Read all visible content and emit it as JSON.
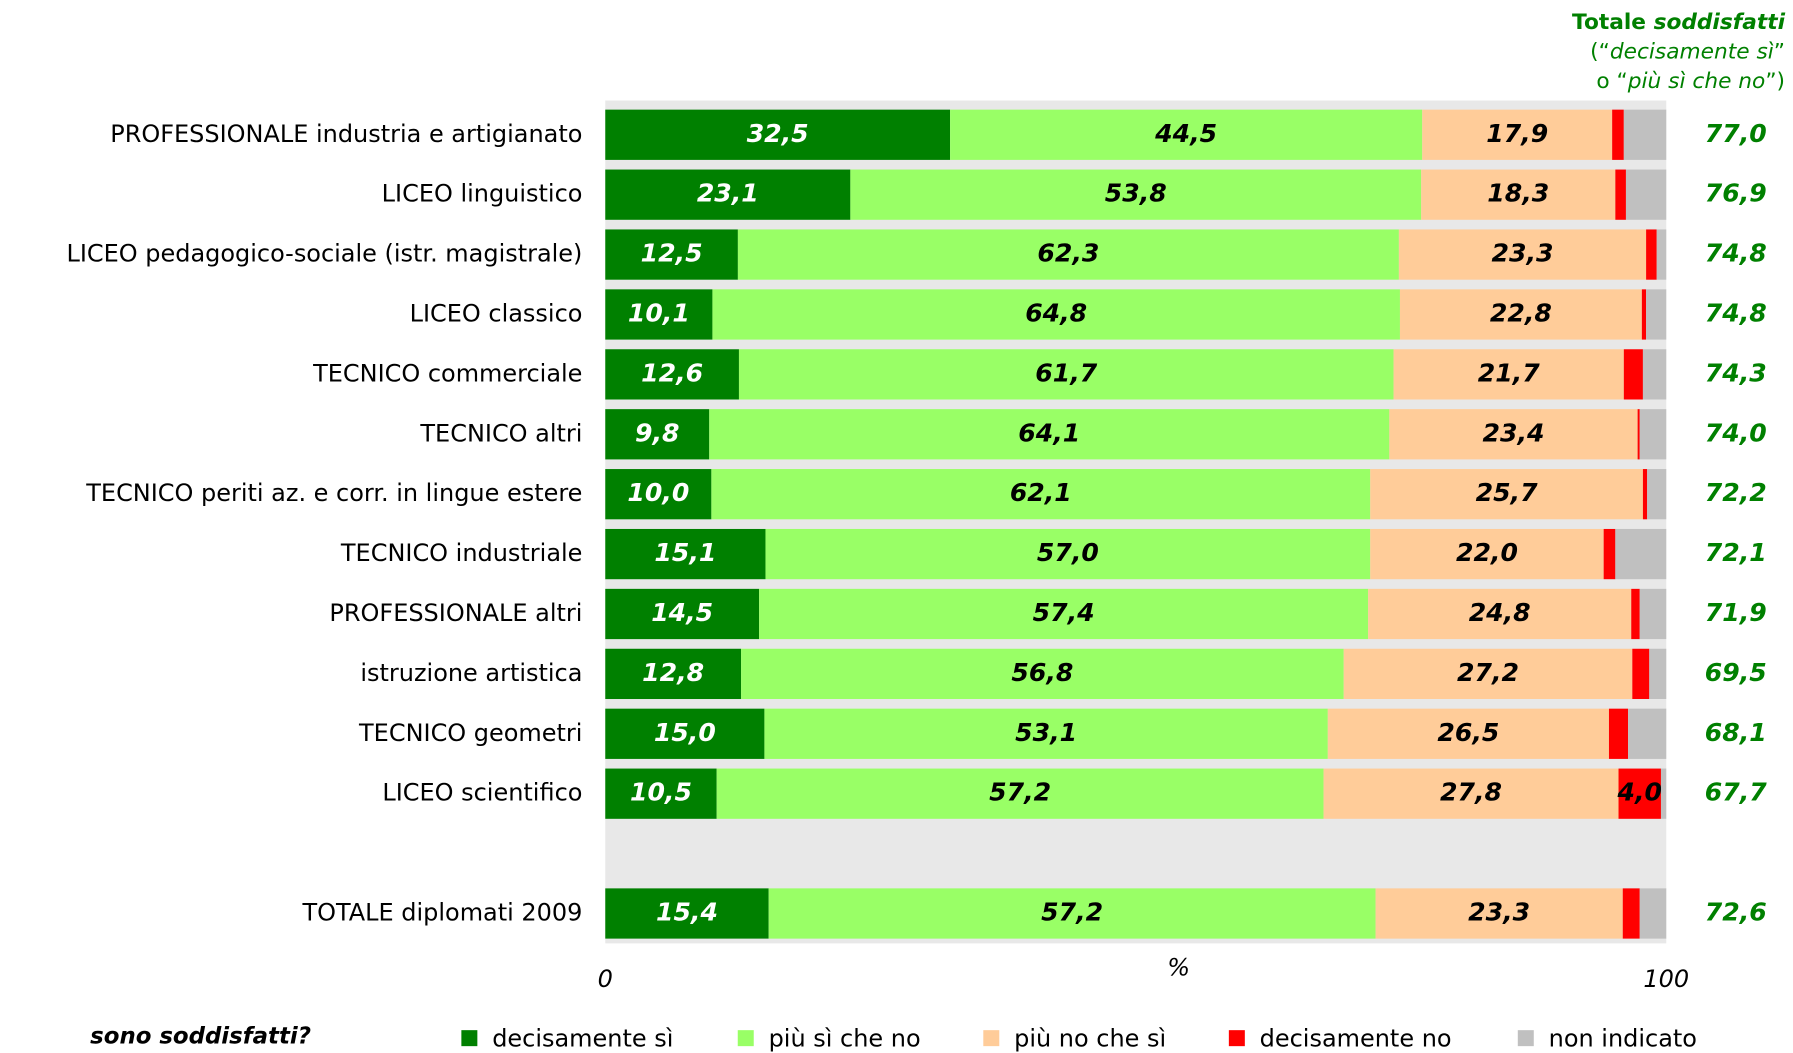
{
  "chart_data": {
    "type": "stacked-bar-horizontal",
    "categories": [
      "PROFESSIONALE industria e artigianato",
      "LICEO linguistico",
      "LICEO pedagogico-sociale (istr. magistrale)",
      "LICEO classico",
      "TECNICO commerciale",
      "TECNICO altri",
      "TECNICO periti az. e corr. in lingue estere",
      "TECNICO industriale",
      "PROFESSIONALE altri",
      "istruzione artistica",
      "TECNICO geometri",
      "LICEO scientifico",
      null,
      "TOTALE diplomati 2009"
    ],
    "series": [
      {
        "name": "decisamente sì",
        "color": "#008000",
        "label_color": "#ffffff",
        "values": [
          32.5,
          23.1,
          12.5,
          10.1,
          12.6,
          9.8,
          10.0,
          15.1,
          14.5,
          12.8,
          15.0,
          10.5,
          null,
          15.4
        ],
        "value_labels": [
          "32,5",
          "23,1",
          "12,5",
          "10,1",
          "12,6",
          "9,8",
          "10,0",
          "15,1",
          "14,5",
          "12,8",
          "15,0",
          "10,5",
          null,
          "15,4"
        ]
      },
      {
        "name": "più sì che no",
        "color": "#99ff66",
        "label_color": "#000000",
        "values": [
          44.5,
          53.8,
          62.3,
          64.8,
          61.7,
          64.1,
          62.1,
          57.0,
          57.4,
          56.8,
          53.1,
          57.2,
          null,
          57.2
        ],
        "value_labels": [
          "44,5",
          "53,8",
          "62,3",
          "64,8",
          "61,7",
          "64,1",
          "62,1",
          "57,0",
          "57,4",
          "56,8",
          "53,1",
          "57,2",
          null,
          "57,2"
        ]
      },
      {
        "name": "più no che sì",
        "color": "#ffcc99",
        "label_color": "#000000",
        "values": [
          17.9,
          18.3,
          23.3,
          22.8,
          21.7,
          23.4,
          25.7,
          22.0,
          24.8,
          27.2,
          26.5,
          27.8,
          null,
          23.3
        ],
        "value_labels": [
          "17,9",
          "18,3",
          "23,3",
          "22,8",
          "21,7",
          "23,4",
          "25,7",
          "22,0",
          "24,8",
          "27,2",
          "26,5",
          "27,8",
          null,
          "23,3"
        ]
      },
      {
        "name": "decisamente no",
        "color": "#ff0000",
        "label_color": "#000000",
        "values": [
          1.1,
          1.0,
          1.0,
          0.4,
          1.8,
          0.2,
          0.4,
          1.1,
          0.8,
          1.6,
          1.8,
          4.0,
          null,
          1.6
        ],
        "value_labels": [
          null,
          null,
          null,
          null,
          null,
          null,
          null,
          null,
          null,
          null,
          null,
          "4,0",
          null,
          null
        ]
      },
      {
        "name": "non indicato",
        "color": "#c0c0c0",
        "label_color": "#000000",
        "values": [
          4.0,
          3.8,
          0.9,
          1.9,
          2.2,
          2.5,
          1.8,
          4.8,
          2.5,
          1.6,
          3.6,
          0.5,
          null,
          2.5
        ],
        "value_labels": [
          null,
          null,
          null,
          null,
          null,
          null,
          null,
          null,
          null,
          null,
          null,
          null,
          null,
          null
        ]
      }
    ],
    "totals": {
      "header": [
        "Totale ",
        "soddisfatti",
        "(“",
        "decisamente sì",
        "”",
        "o “",
        "più sì che no",
        "”)"
      ],
      "color": "#008000",
      "values": [
        77.0,
        76.9,
        74.8,
        74.8,
        74.3,
        74.0,
        72.2,
        72.1,
        71.9,
        69.5,
        68.1,
        67.7,
        null,
        72.6
      ],
      "value_labels": [
        "77,0",
        "76,9",
        "74,8",
        "74,8",
        "74,3",
        "74,0",
        "72,2",
        "72,1",
        "71,9",
        "69,5",
        "68,1",
        "67,7",
        null,
        "72,6"
      ]
    },
    "xlim": [
      0,
      100
    ],
    "xticks": [
      0,
      100
    ],
    "xlabel": "%",
    "legend_title": "sono soddisfatti?",
    "legend": "bottom"
  }
}
